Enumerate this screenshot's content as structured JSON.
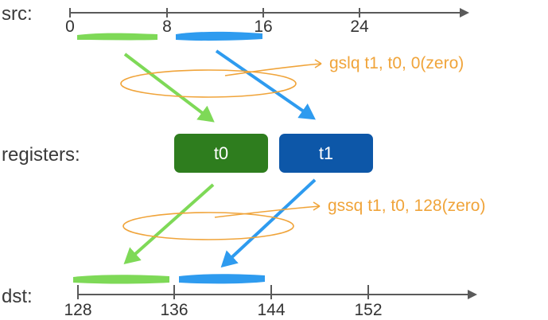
{
  "labels": {
    "src": "src:",
    "registers": "registers:",
    "dst": "dst:"
  },
  "src_axis": {
    "ticks": [
      "0",
      "8",
      "16",
      "24"
    ]
  },
  "dst_axis": {
    "ticks": [
      "128",
      "136",
      "144",
      "152"
    ]
  },
  "registers": [
    {
      "name": "t0",
      "color": "#2E7D1E"
    },
    {
      "name": "t1",
      "color": "#0D57A8"
    }
  ],
  "instructions": {
    "load": "gslq  t1, t0, 0(zero)",
    "store": "gssq t1, t0, 128(zero)"
  },
  "colors": {
    "green": "#7ED957",
    "blue": "#2E9BEF",
    "orange": "#F0A43A",
    "axis": "#555555"
  }
}
